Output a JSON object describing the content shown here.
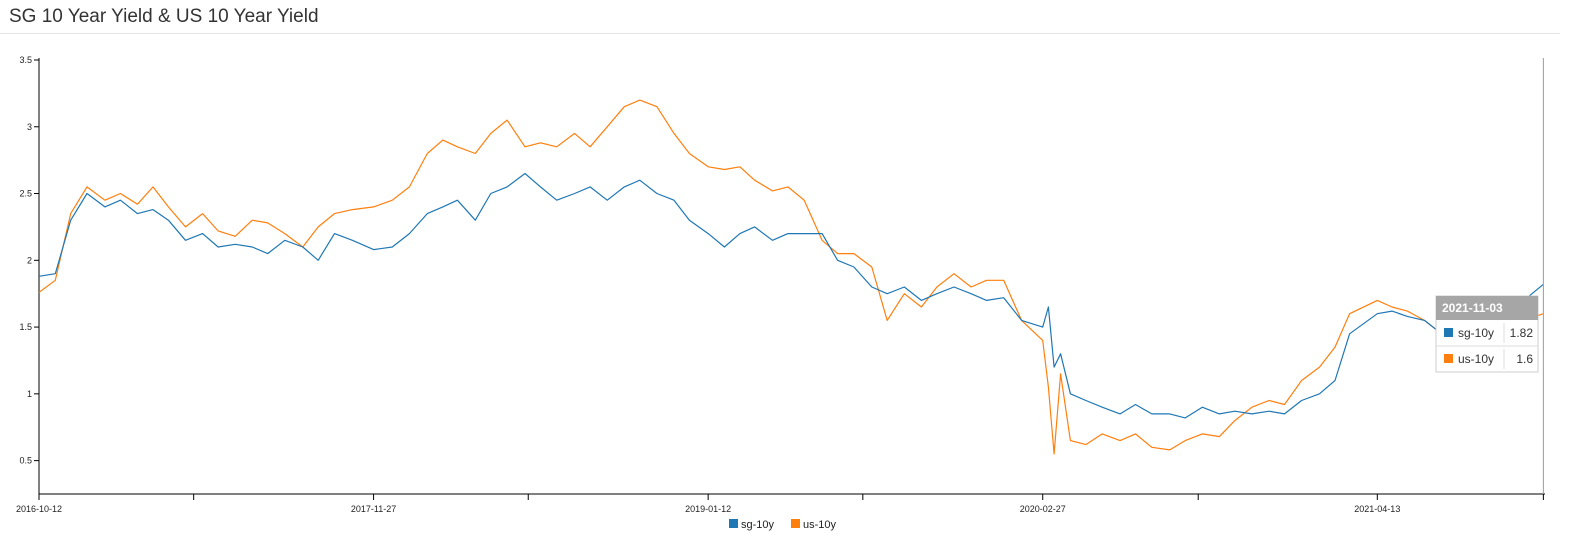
{
  "page": {
    "title": "SG 10 Year Yield & US 10 Year Yield"
  },
  "chart_data": {
    "type": "line",
    "title": "SG 10 Year Yield & US 10 Year Yield",
    "xlabel": "",
    "ylabel": "",
    "x_range": [
      "2016-10-12",
      "2021-11-05"
    ],
    "ylim": [
      0.25,
      3.5
    ],
    "y_ticks": [
      0.5,
      1,
      1.5,
      2,
      2.5,
      3,
      3.5
    ],
    "y_tick_labels": [
      "0.5",
      "1",
      "1.5",
      "2",
      "2.5",
      "3",
      "3.5"
    ],
    "x_tick_labels": [
      "2016-10-12",
      "2017-11-27",
      "2019-01-12",
      "2020-02-27",
      "2021-04-13"
    ],
    "x_tick_dates": [
      "2016-10-12",
      "2017-04-20",
      "2017-11-27",
      "2018-06-05",
      "2019-01-12",
      "2019-07-21",
      "2020-02-27",
      "2020-09-05",
      "2021-04-13",
      "2021-11-03"
    ],
    "grid": false,
    "legend": "bottom-center",
    "colors": {
      "sg-10y": "#1f77b4",
      "us-10y": "#ff7f0e"
    },
    "series": [
      {
        "name": "sg-10y",
        "x": [
          "2016-10-12",
          "2016-11-01",
          "2016-11-20",
          "2016-12-10",
          "2017-01-01",
          "2017-01-20",
          "2017-02-10",
          "2017-03-01",
          "2017-03-20",
          "2017-04-10",
          "2017-05-01",
          "2017-05-20",
          "2017-06-10",
          "2017-07-01",
          "2017-07-20",
          "2017-08-10",
          "2017-09-01",
          "2017-09-20",
          "2017-10-10",
          "2017-11-01",
          "2017-11-27",
          "2017-12-20",
          "2018-01-10",
          "2018-02-01",
          "2018-02-20",
          "2018-03-10",
          "2018-04-01",
          "2018-04-20",
          "2018-05-10",
          "2018-06-01",
          "2018-06-20",
          "2018-07-10",
          "2018-08-01",
          "2018-08-20",
          "2018-09-10",
          "2018-10-01",
          "2018-10-20",
          "2018-11-10",
          "2018-12-01",
          "2018-12-20",
          "2019-01-12",
          "2019-02-01",
          "2019-02-20",
          "2019-03-10",
          "2019-04-01",
          "2019-04-20",
          "2019-05-10",
          "2019-06-01",
          "2019-06-20",
          "2019-07-10",
          "2019-08-01",
          "2019-08-20",
          "2019-09-10",
          "2019-10-01",
          "2019-10-20",
          "2019-11-10",
          "2019-12-01",
          "2019-12-20",
          "2020-01-10",
          "2020-02-01",
          "2020-02-27",
          "2020-03-05",
          "2020-03-12",
          "2020-03-20",
          "2020-04-01",
          "2020-04-20",
          "2020-05-10",
          "2020-06-01",
          "2020-06-20",
          "2020-07-10",
          "2020-08-01",
          "2020-08-20",
          "2020-09-10",
          "2020-10-01",
          "2020-10-20",
          "2020-11-10",
          "2020-12-01",
          "2020-12-20",
          "2021-01-10",
          "2021-02-01",
          "2021-02-20",
          "2021-03-10",
          "2021-04-13",
          "2021-05-01",
          "2021-05-20",
          "2021-06-10",
          "2021-07-01",
          "2021-07-20",
          "2021-08-10",
          "2021-09-01",
          "2021-09-20",
          "2021-10-10",
          "2021-11-03"
        ],
        "values": [
          1.88,
          1.9,
          2.3,
          2.5,
          2.4,
          2.45,
          2.35,
          2.38,
          2.3,
          2.15,
          2.2,
          2.1,
          2.12,
          2.1,
          2.05,
          2.15,
          2.1,
          2.0,
          2.2,
          2.15,
          2.08,
          2.1,
          2.2,
          2.35,
          2.4,
          2.45,
          2.3,
          2.5,
          2.55,
          2.65,
          2.55,
          2.45,
          2.5,
          2.55,
          2.45,
          2.55,
          2.6,
          2.5,
          2.45,
          2.3,
          2.2,
          2.1,
          2.2,
          2.25,
          2.15,
          2.2,
          2.2,
          2.2,
          2.0,
          1.95,
          1.8,
          1.75,
          1.8,
          1.7,
          1.75,
          1.8,
          1.75,
          1.7,
          1.72,
          1.55,
          1.5,
          1.65,
          1.2,
          1.3,
          1.0,
          0.95,
          0.9,
          0.85,
          0.92,
          0.85,
          0.85,
          0.82,
          0.9,
          0.85,
          0.87,
          0.85,
          0.87,
          0.85,
          0.95,
          1.0,
          1.1,
          1.45,
          1.6,
          1.62,
          1.58,
          1.55,
          1.45,
          1.5,
          1.5,
          1.52,
          1.55,
          1.7,
          1.82
        ]
      },
      {
        "name": "us-10y",
        "x": [
          "2016-10-12",
          "2016-11-01",
          "2016-11-20",
          "2016-12-10",
          "2017-01-01",
          "2017-01-20",
          "2017-02-10",
          "2017-03-01",
          "2017-03-20",
          "2017-04-10",
          "2017-05-01",
          "2017-05-20",
          "2017-06-10",
          "2017-07-01",
          "2017-07-20",
          "2017-08-10",
          "2017-09-01",
          "2017-09-20",
          "2017-10-10",
          "2017-11-01",
          "2017-11-27",
          "2017-12-20",
          "2018-01-10",
          "2018-02-01",
          "2018-02-20",
          "2018-03-10",
          "2018-04-01",
          "2018-04-20",
          "2018-05-10",
          "2018-06-01",
          "2018-06-20",
          "2018-07-10",
          "2018-08-01",
          "2018-08-20",
          "2018-09-10",
          "2018-10-01",
          "2018-10-20",
          "2018-11-10",
          "2018-12-01",
          "2018-12-20",
          "2019-01-12",
          "2019-02-01",
          "2019-02-20",
          "2019-03-10",
          "2019-04-01",
          "2019-04-20",
          "2019-05-10",
          "2019-06-01",
          "2019-06-20",
          "2019-07-10",
          "2019-08-01",
          "2019-08-20",
          "2019-09-10",
          "2019-10-01",
          "2019-10-20",
          "2019-11-10",
          "2019-12-01",
          "2019-12-20",
          "2020-01-10",
          "2020-02-01",
          "2020-02-27",
          "2020-03-05",
          "2020-03-12",
          "2020-03-20",
          "2020-04-01",
          "2020-04-20",
          "2020-05-10",
          "2020-06-01",
          "2020-06-20",
          "2020-07-10",
          "2020-08-01",
          "2020-08-20",
          "2020-09-10",
          "2020-10-01",
          "2020-10-20",
          "2020-11-10",
          "2020-12-01",
          "2020-12-20",
          "2021-01-10",
          "2021-02-01",
          "2021-02-20",
          "2021-03-10",
          "2021-04-13",
          "2021-05-01",
          "2021-05-20",
          "2021-06-10",
          "2021-07-01",
          "2021-07-20",
          "2021-08-10",
          "2021-09-01",
          "2021-09-20",
          "2021-10-10",
          "2021-11-03"
        ],
        "values": [
          1.76,
          1.85,
          2.35,
          2.55,
          2.45,
          2.5,
          2.42,
          2.55,
          2.4,
          2.25,
          2.35,
          2.22,
          2.18,
          2.3,
          2.28,
          2.2,
          2.1,
          2.25,
          2.35,
          2.38,
          2.4,
          2.45,
          2.55,
          2.8,
          2.9,
          2.85,
          2.8,
          2.95,
          3.05,
          2.85,
          2.88,
          2.85,
          2.95,
          2.85,
          3.0,
          3.15,
          3.2,
          3.15,
          2.95,
          2.8,
          2.7,
          2.68,
          2.7,
          2.6,
          2.52,
          2.55,
          2.45,
          2.15,
          2.05,
          2.05,
          1.95,
          1.55,
          1.75,
          1.65,
          1.8,
          1.9,
          1.8,
          1.85,
          1.85,
          1.55,
          1.4,
          1.05,
          0.55,
          1.15,
          0.65,
          0.62,
          0.7,
          0.65,
          0.7,
          0.6,
          0.58,
          0.65,
          0.7,
          0.68,
          0.8,
          0.9,
          0.95,
          0.92,
          1.1,
          1.2,
          1.35,
          1.6,
          1.7,
          1.65,
          1.62,
          1.55,
          1.45,
          1.3,
          1.35,
          1.3,
          1.4,
          1.55,
          1.6
        ]
      }
    ],
    "tooltip": {
      "date": "2021-11-03",
      "rows": [
        {
          "name": "sg-10y",
          "value": "1.82"
        },
        {
          "name": "us-10y",
          "value": "1.6"
        }
      ]
    }
  }
}
